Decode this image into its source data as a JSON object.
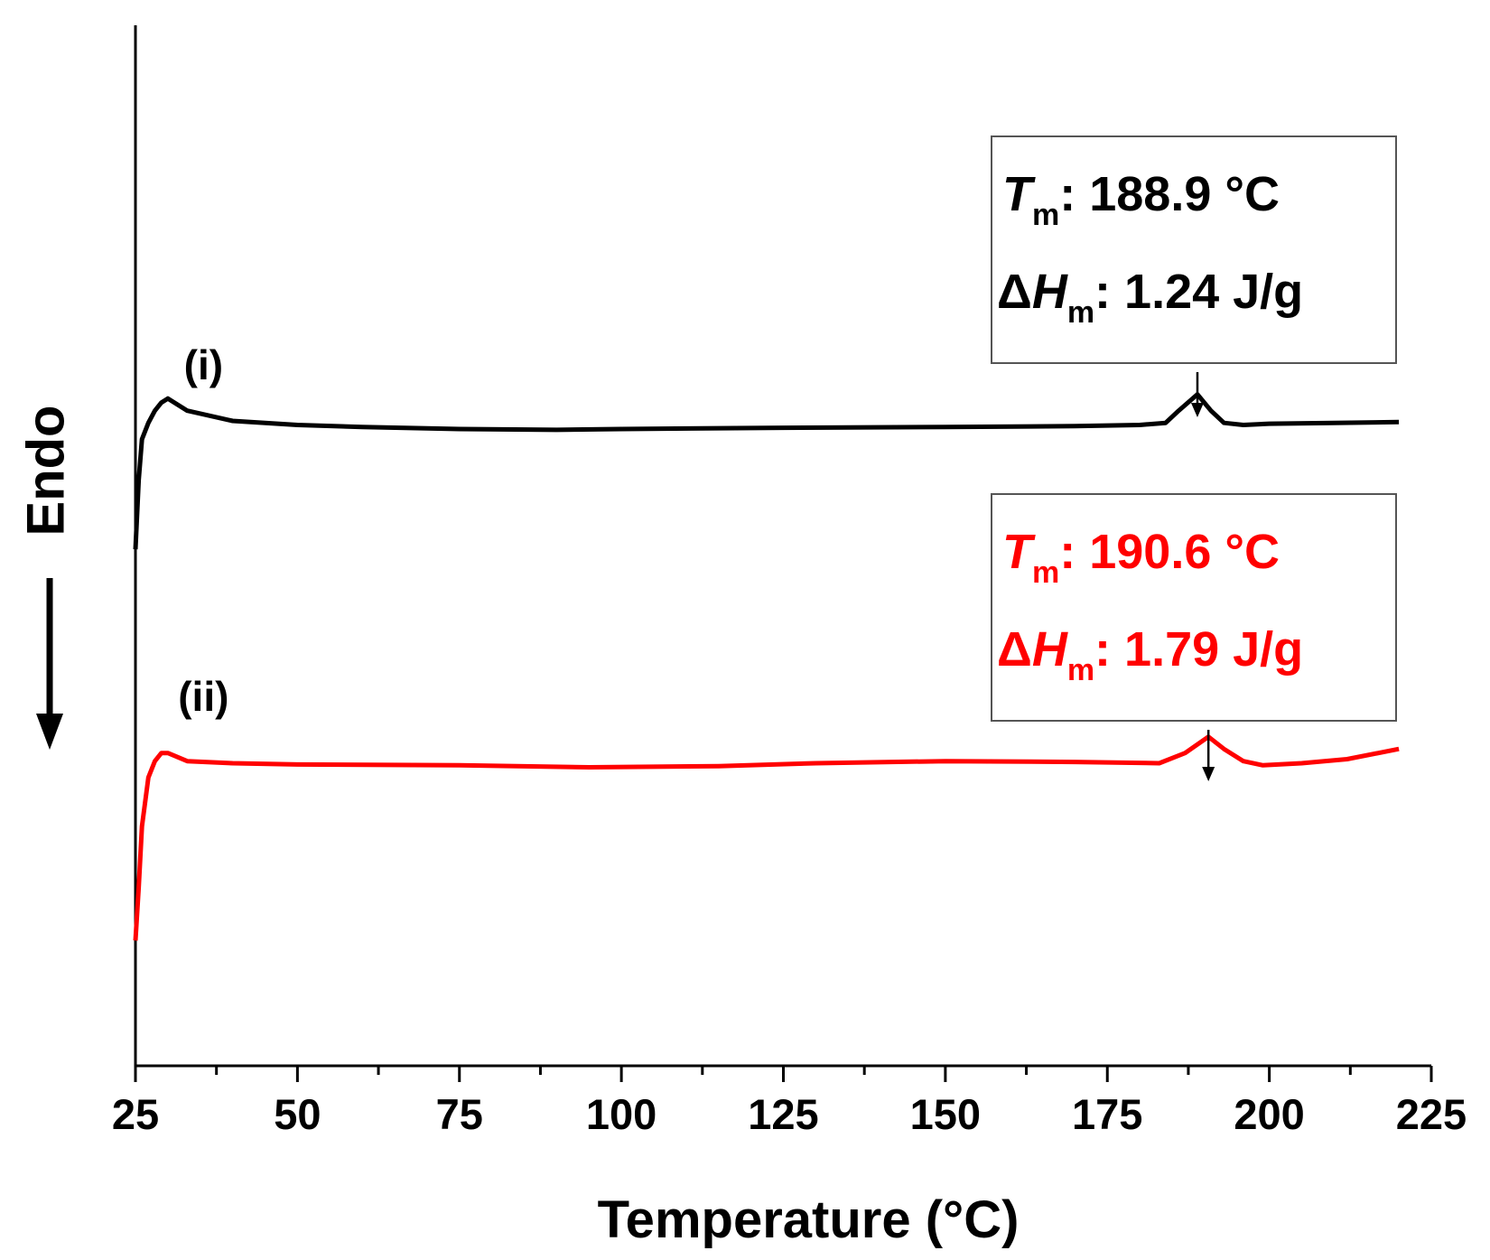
{
  "chart_data": {
    "type": "line",
    "xlabel": "Temperature (°C)",
    "ylabel": "Endo",
    "xlim": [
      25,
      225
    ],
    "xticks": [
      25,
      50,
      75,
      100,
      125,
      150,
      175,
      200,
      225
    ],
    "y_ticks_shown": false,
    "grid": false,
    "series": [
      {
        "name": "(i)",
        "color": "#000000",
        "x": [
          25,
          25.5,
          26,
          27,
          28,
          29,
          30,
          33,
          40,
          50,
          60,
          75,
          90,
          100,
          125,
          150,
          170,
          180,
          184,
          186,
          188.9,
          191,
          193,
          196,
          200,
          210,
          220
        ],
        "y": [
          0.22,
          0.05,
          -0.05,
          -0.09,
          -0.12,
          -0.14,
          -0.15,
          -0.12,
          -0.095,
          -0.085,
          -0.08,
          -0.075,
          -0.073,
          -0.075,
          -0.078,
          -0.08,
          -0.082,
          -0.085,
          -0.09,
          -0.12,
          -0.16,
          -0.12,
          -0.09,
          -0.085,
          -0.088,
          -0.09,
          -0.092
        ]
      },
      {
        "name": "(ii)",
        "color": "#ff0000",
        "x": [
          25,
          25.5,
          26,
          27,
          28,
          29,
          30,
          33,
          40,
          50,
          75,
          95,
          115,
          130,
          150,
          170,
          183,
          187,
          190.6,
          193,
          196,
          199,
          205,
          212,
          220
        ],
        "y": [
          1.18,
          1.05,
          0.9,
          0.78,
          0.74,
          0.72,
          0.72,
          0.74,
          0.745,
          0.748,
          0.75,
          0.755,
          0.752,
          0.745,
          0.74,
          0.742,
          0.745,
          0.72,
          0.68,
          0.71,
          0.74,
          0.75,
          0.745,
          0.735,
          0.71
        ]
      }
    ],
    "annotations": [
      {
        "series": "(i)",
        "color": "#000000",
        "arrow_x": 188.9,
        "line1": {
          "symbol": "T",
          "sub": "m",
          "text": ": 188.9 °C"
        },
        "line2": {
          "prefix": "Δ",
          "symbol": "H",
          "sub": "m",
          "text": ": 1.24 J/g"
        }
      },
      {
        "series": "(ii)",
        "color": "#ff0000",
        "arrow_x": 190.6,
        "line1": {
          "symbol": "T",
          "sub": "m",
          "text": ": 190.6 °C"
        },
        "line2": {
          "prefix": "Δ",
          "symbol": "H",
          "sub": "m",
          "text": ": 1.79 J/g"
        }
      }
    ]
  }
}
